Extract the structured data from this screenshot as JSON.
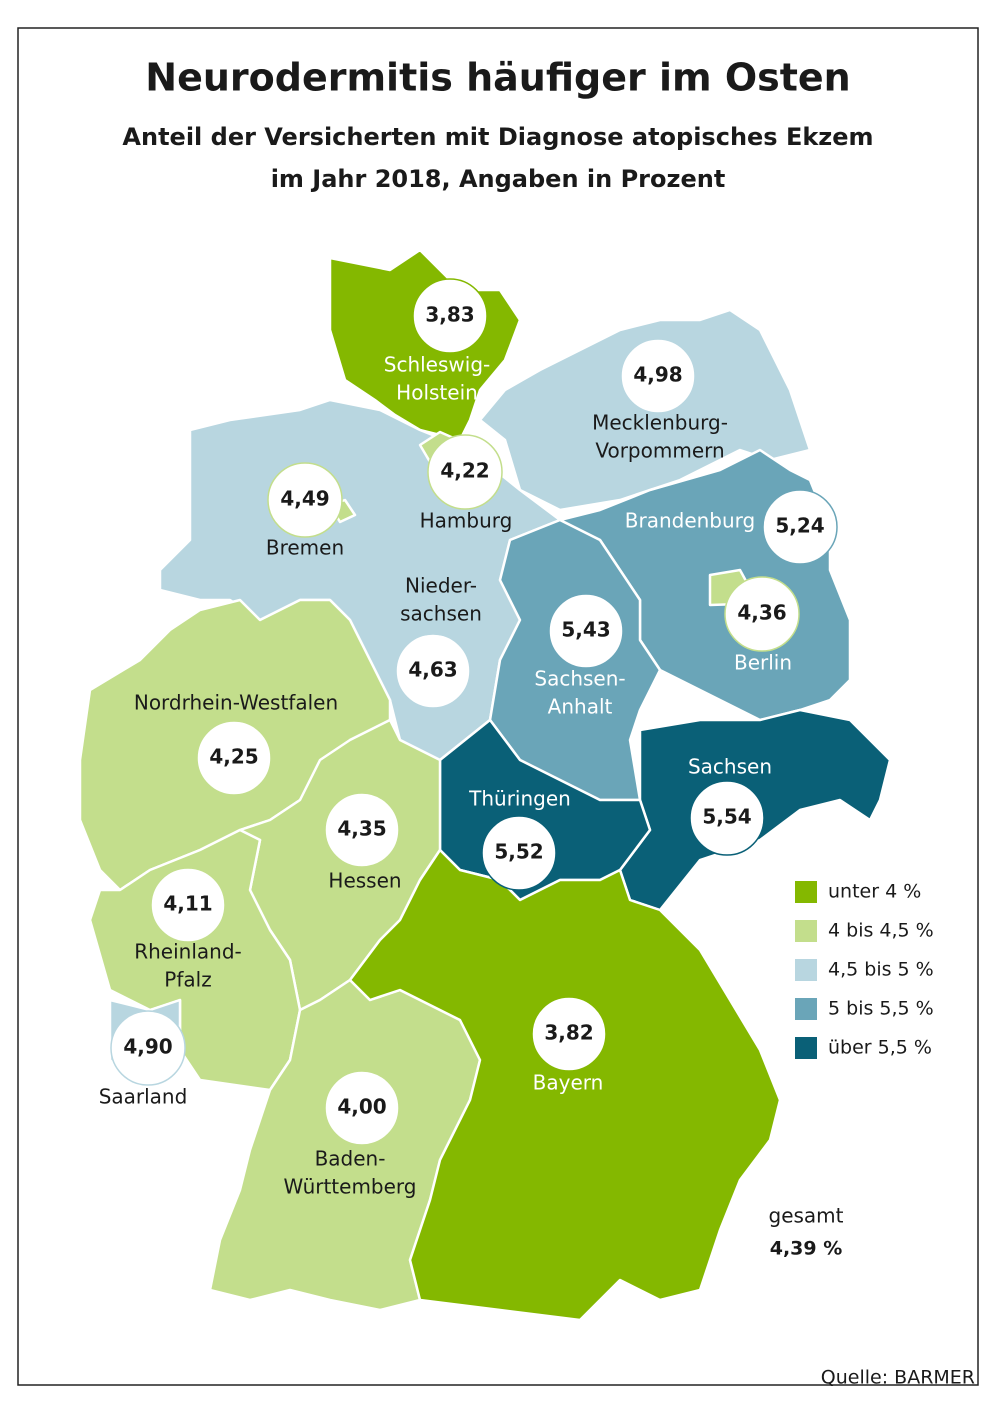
{
  "title": "Neurodermitis häufiger im Osten",
  "subtitle": [
    "Anteil der Versicherten mit Diagnose atopisches Ekzem",
    "im Jahr 2018, Angaben in Prozent"
  ],
  "regions": [
    {
      "name": [
        "Schleswig-",
        "Holstein"
      ],
      "value": "3,83",
      "color": "#84b800"
    },
    {
      "name": [
        "Mecklenburg-",
        "Vorpommern"
      ],
      "value": "4,98",
      "color": "#b8d6e0"
    },
    {
      "name": [
        "Hamburg"
      ],
      "value": "4,22",
      "color": "#c3de8c"
    },
    {
      "name": [
        "Bremen"
      ],
      "value": "4,49",
      "color": "#c3de8c"
    },
    {
      "name": [
        "Nieder-",
        "sachsen"
      ],
      "value": "4,63",
      "color": "#b8d6e0"
    },
    {
      "name": [
        "Brandenburg"
      ],
      "value": "5,24",
      "color": "#6aa5b8"
    },
    {
      "name": [
        "Berlin"
      ],
      "value": "4,36",
      "color": "#c3de8c"
    },
    {
      "name": [
        "Sachsen-",
        "Anhalt"
      ],
      "value": "5,43",
      "color": "#6aa5b8"
    },
    {
      "name": [
        "Nordrhein-Westfalen"
      ],
      "value": "4,25",
      "color": "#c3de8c"
    },
    {
      "name": [
        "Hessen"
      ],
      "value": "4,35",
      "color": "#c3de8c"
    },
    {
      "name": [
        "Thüringen"
      ],
      "value": "5,52",
      "color": "#0a6077"
    },
    {
      "name": [
        "Sachsen"
      ],
      "value": "5,54",
      "color": "#0a6077"
    },
    {
      "name": [
        "Rheinland-",
        "Pfalz"
      ],
      "value": "4,11",
      "color": "#c3de8c"
    },
    {
      "name": [
        "Saarland"
      ],
      "value": "4,90",
      "color": "#b8d6e0"
    },
    {
      "name": [
        "Baden-",
        "Württemberg"
      ],
      "value": "4,00",
      "color": "#c3de8c"
    },
    {
      "name": [
        "Bayern"
      ],
      "value": "3,82",
      "color": "#84b800"
    }
  ],
  "legend": [
    {
      "label": "unter 4 %",
      "color": "#84b800"
    },
    {
      "label": "4 bis 4,5 %",
      "color": "#c3de8c"
    },
    {
      "label": "4,5 bis 5 %",
      "color": "#b8d6e0"
    },
    {
      "label": "5 bis 5,5 %",
      "color": "#6aa5b8"
    },
    {
      "label": "über 5,5 %",
      "color": "#0a6077"
    }
  ],
  "total": {
    "label": "gesamt",
    "value": "4,39 %"
  },
  "source": "Quelle: BARMER"
}
